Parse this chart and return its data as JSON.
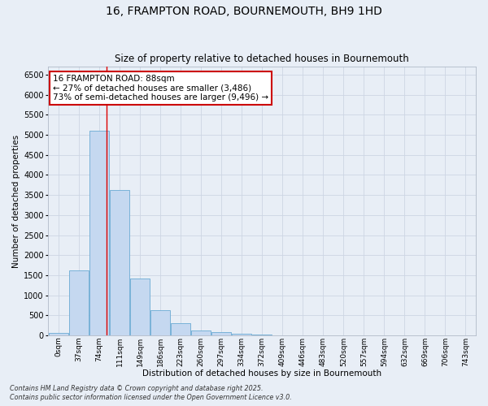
{
  "title_line1": "16, FRAMPTON ROAD, BOURNEMOUTH, BH9 1HD",
  "title_line2": "Size of property relative to detached houses in Bournemouth",
  "xlabel": "Distribution of detached houses by size in Bournemouth",
  "ylabel": "Number of detached properties",
  "bin_labels": [
    "0sqm",
    "37sqm",
    "74sqm",
    "111sqm",
    "149sqm",
    "186sqm",
    "223sqm",
    "260sqm",
    "297sqm",
    "334sqm",
    "372sqm",
    "409sqm",
    "446sqm",
    "483sqm",
    "520sqm",
    "557sqm",
    "594sqm",
    "632sqm",
    "669sqm",
    "706sqm",
    "743sqm"
  ],
  "bar_values": [
    65,
    1620,
    5100,
    3620,
    1420,
    620,
    310,
    130,
    80,
    45,
    30,
    0,
    0,
    0,
    0,
    0,
    0,
    0,
    0,
    0,
    0
  ],
  "bar_color": "#c5d8f0",
  "bar_edge_color": "#6aaad4",
  "ylim": [
    0,
    6700
  ],
  "yticks": [
    0,
    500,
    1000,
    1500,
    2000,
    2500,
    3000,
    3500,
    4000,
    4500,
    5000,
    5500,
    6000,
    6500
  ],
  "vline_x": 2.37,
  "vline_color": "#dd0000",
  "annotation_text": "16 FRAMPTON ROAD: 88sqm\n← 27% of detached houses are smaller (3,486)\n73% of semi-detached houses are larger (9,496) →",
  "annotation_box_color": "#ffffff",
  "annotation_box_edge": "#cc0000",
  "grid_color": "#cdd5e3",
  "bg_color": "#e8eef6",
  "footer_line1": "Contains HM Land Registry data © Crown copyright and database right 2025.",
  "footer_line2": "Contains public sector information licensed under the Open Government Licence v3.0."
}
